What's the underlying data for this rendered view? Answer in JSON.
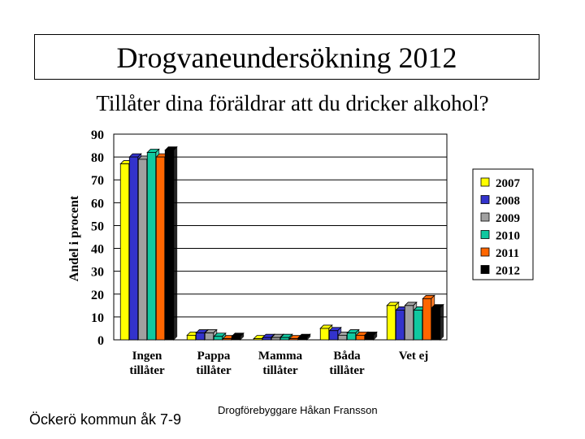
{
  "header": {
    "title": "Drogvaneundersökning 2012",
    "subtitle": "Tillåter dina föräldrar att du dricker alkohol?"
  },
  "footer": {
    "left": "Öckerö kommun åk 7-9",
    "center": "Drogförebyggare Håkan Fransson"
  },
  "chart_data": {
    "type": "bar",
    "ylabel": "Andel i procent",
    "xlabel": "",
    "ylim": [
      0,
      90
    ],
    "yticks": [
      0,
      10,
      20,
      30,
      40,
      50,
      60,
      70,
      80,
      90
    ],
    "grid": true,
    "legend_position": "right",
    "categories": [
      [
        "Ingen",
        "tillåter"
      ],
      [
        "Pappa",
        "tillåter"
      ],
      [
        "Mamma",
        "tillåter"
      ],
      [
        "Båda",
        "tillåter"
      ],
      [
        "Vet ej"
      ]
    ],
    "series": [
      {
        "name": "2007",
        "color": "#FFFF00",
        "values": [
          77,
          2,
          0.5,
          5,
          15
        ]
      },
      {
        "name": "2008",
        "color": "#3333CC",
        "values": [
          80,
          3,
          1,
          4,
          13
        ]
      },
      {
        "name": "2009",
        "color": "#A0A0A0",
        "values": [
          79,
          3,
          1,
          2,
          15
        ]
      },
      {
        "name": "2010",
        "color": "#10C8A0",
        "values": [
          82,
          1.5,
          1,
          3,
          13
        ]
      },
      {
        "name": "2011",
        "color": "#FF6600",
        "values": [
          80,
          0.5,
          0.5,
          2,
          18
        ]
      },
      {
        "name": "2012",
        "color": "#000000",
        "values": [
          83,
          1.5,
          1,
          2,
          14
        ]
      }
    ]
  }
}
